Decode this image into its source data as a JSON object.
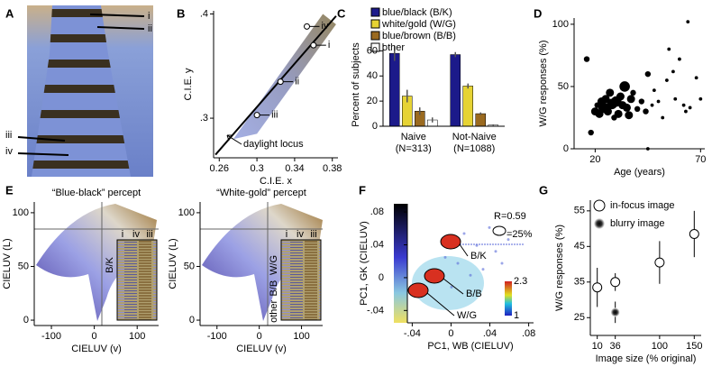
{
  "photo": {
    "label": "A",
    "annotations": [
      "i",
      "ii",
      "iii",
      "iv"
    ]
  },
  "chart_data": [
    {
      "type": "scatter",
      "label": "B",
      "xlabel": "C.I.E. x",
      "ylabel": "C.I.E. y",
      "xlim": [
        0.254,
        0.386
      ],
      "ylim": [
        0.262,
        0.403
      ],
      "xticks": [
        0.26,
        0.3,
        0.34,
        0.38
      ],
      "yticks": [
        {
          "value": 0.3,
          "label": ".3"
        },
        {
          "value": 0.4,
          "label": ".4"
        }
      ],
      "series": [
        {
          "name": "daylight locus",
          "color": "#000000",
          "x": [
            0.256,
            0.384
          ],
          "values": [
            0.265,
            0.398
          ]
        }
      ],
      "points": {
        "labels": [
          "iv",
          "i",
          "ii",
          "iii"
        ],
        "x": [
          0.353,
          0.36,
          0.325,
          0.3
        ],
        "values": [
          0.388,
          0.37,
          0.335,
          0.303
        ]
      }
    },
    {
      "type": "bar",
      "label": "C",
      "ylabel": "Percent of subjects",
      "categories": [
        "Naive",
        "Not-Naive"
      ],
      "category_notes": [
        "(N=313)",
        "(N=1088)"
      ],
      "ylim": [
        0,
        66
      ],
      "yticks": [
        0,
        20,
        40,
        60
      ],
      "series": [
        {
          "name": "blue/black (B/K)",
          "color": "#1c1a8a",
          "values": [
            58,
            57
          ],
          "errors": [
            6,
            2
          ]
        },
        {
          "name": "white/gold (W/G)",
          "color": "#e6d334",
          "values": [
            24,
            32
          ],
          "errors": [
            5,
            2
          ]
        },
        {
          "name": "blue/brown (B/B)",
          "color": "#9a6a20",
          "values": [
            12,
            10
          ],
          "errors": [
            3,
            1
          ]
        },
        {
          "name": "other",
          "color": "#ffffff",
          "values": [
            5,
            1
          ],
          "errors": [
            2,
            0.5
          ]
        }
      ]
    },
    {
      "type": "bubble",
      "label": "D",
      "xlabel": "Age (years)",
      "ylabel": "W/G responses (%)",
      "xlim": [
        10,
        72
      ],
      "ylim": [
        0,
        105
      ],
      "xticks": [
        20,
        70
      ],
      "yticks": [
        0,
        50,
        100
      ],
      "color": "#000000",
      "x": [
        16,
        18,
        20,
        21,
        22,
        23,
        24,
        25,
        26,
        27,
        28,
        29,
        30,
        31,
        32,
        33,
        34,
        35,
        36,
        37,
        38,
        40,
        42,
        44,
        45,
        47,
        48,
        50,
        52,
        54,
        55,
        57,
        58,
        60,
        62,
        63,
        65,
        68,
        70,
        45,
        64
      ],
      "values": [
        72,
        13,
        30,
        35,
        28,
        38,
        33,
        40,
        30,
        45,
        36,
        25,
        38,
        28,
        42,
        35,
        50,
        33,
        27,
        40,
        45,
        32,
        38,
        30,
        60,
        35,
        47,
        38,
        25,
        55,
        80,
        62,
        40,
        72,
        35,
        30,
        33,
        57,
        40,
        0,
        102
      ],
      "sizes": [
        2,
        2,
        3,
        2,
        3,
        3,
        4,
        3,
        3,
        3,
        4,
        2,
        4,
        3,
        3,
        3,
        4,
        3,
        3,
        3,
        2,
        2,
        2,
        2,
        2,
        1,
        1,
        1,
        1,
        1,
        1,
        1,
        1,
        1,
        1,
        1,
        1,
        1,
        1,
        1,
        1
      ]
    },
    {
      "type": "scatter",
      "label": "E",
      "title": "“Blue-black” percept",
      "xlabel": "CIELUV (v)",
      "ylabel": "CIELUV (L)",
      "xlim": [
        -140,
        150
      ],
      "ylim": [
        -5,
        110
      ],
      "xticks": [
        -100,
        0,
        100
      ],
      "yticks": [
        0,
        50,
        100
      ],
      "inset_labels": [
        "i",
        "iv",
        "iii"
      ],
      "inset_categories": [
        "B/K"
      ]
    },
    {
      "type": "scatter",
      "title": "“White-gold” percept",
      "xlabel": "CIELUV (v)",
      "ylabel": "CIELUV (L)",
      "xlim": [
        -140,
        150
      ],
      "ylim": [
        -5,
        110
      ],
      "xticks": [
        -100,
        0,
        100
      ],
      "yticks": [
        0,
        50,
        100
      ],
      "inset_labels": [
        "i",
        "iv",
        "iii"
      ],
      "inset_categories": [
        "W/G",
        "B/B",
        "other"
      ]
    },
    {
      "type": "density",
      "label": "F",
      "xlabel": "PC1, WB (CIELUV)",
      "ylabel": "PC1, GK (CIELUV)",
      "xlim": [
        -0.045,
        0.085
      ],
      "ylim": [
        -0.055,
        0.09
      ],
      "xticks": [
        {
          "value": -0.04,
          "label": "-.04"
        },
        0,
        {
          "value": 0.04,
          "label": ".04"
        },
        {
          "value": 0.08,
          "label": ".08"
        }
      ],
      "yticks": [
        {
          "value": -0.04,
          "label": "-.04"
        },
        0,
        {
          "value": 0.04,
          "label": ".04"
        },
        {
          "value": 0.08,
          "label": ".08"
        }
      ],
      "stat": "R=0.59",
      "contour_note": "=25%",
      "cluster_labels": [
        "B/K",
        "B/B",
        "W/G"
      ],
      "colorbar_ticks": [
        2.3,
        1
      ]
    },
    {
      "type": "errorbar",
      "label": "G",
      "xlabel": "Image size (% original)",
      "ylabel": "W/G responses (%)",
      "xlim": [
        0,
        160
      ],
      "ylim": [
        20,
        58
      ],
      "xticks": [
        10,
        36,
        100,
        150
      ],
      "yticks": [
        25,
        35,
        45,
        55
      ],
      "series": [
        {
          "name": "in-focus image",
          "style": "open",
          "x": [
            10,
            36,
            100,
            150
          ],
          "values": [
            33.5,
            35,
            40.5,
            48.5
          ],
          "errors": [
            5.5,
            2.5,
            6,
            6.5
          ]
        },
        {
          "name": "blurry image",
          "style": "blurred",
          "x": [
            36
          ],
          "values": [
            26.5
          ],
          "errors": [
            3
          ]
        }
      ]
    }
  ]
}
